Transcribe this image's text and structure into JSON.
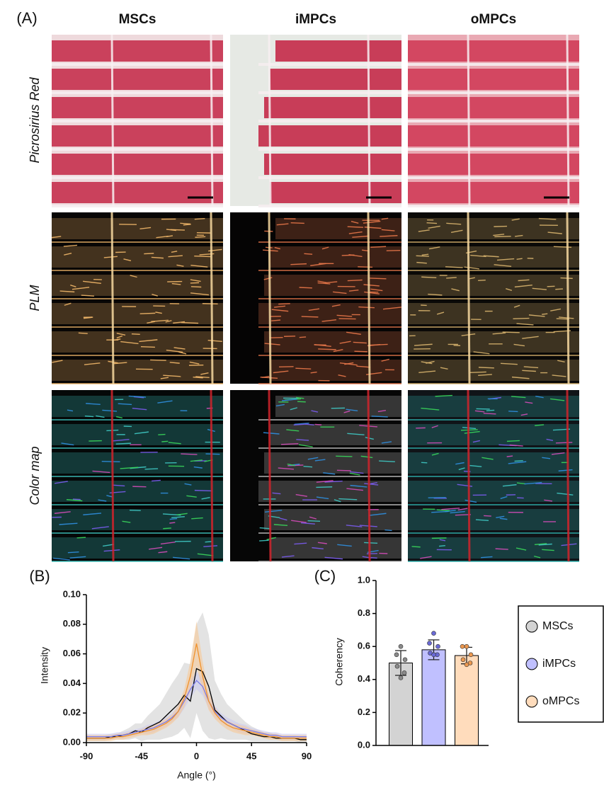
{
  "figure": {
    "panel_labels": [
      "(A)",
      "(B)",
      "(C)"
    ],
    "columns": [
      "MSCs",
      "iMPCs",
      "oMPCs"
    ],
    "rows": [
      "Picrosirius Red",
      "PLM",
      "Color map"
    ]
  },
  "chart_data": [
    {
      "type": "line",
      "xlabel": "Angle (°)",
      "ylabel": "Intensity",
      "x": [
        -90,
        -85,
        -80,
        -75,
        -70,
        -65,
        -60,
        -55,
        -50,
        -45,
        -40,
        -35,
        -30,
        -25,
        -20,
        -15,
        -10,
        -5,
        0,
        5,
        10,
        15,
        20,
        25,
        30,
        35,
        40,
        45,
        50,
        55,
        60,
        65,
        70,
        75,
        80,
        85,
        90
      ],
      "xlim": [
        -90,
        90
      ],
      "xticks": [
        -90,
        -45,
        0,
        45,
        90
      ],
      "ylim": [
        0,
        0.1
      ],
      "yticks": [
        {
          "value": 0,
          "label": "0.00"
        },
        {
          "value": 0.02,
          "label": "0.02"
        },
        {
          "value": 0.04,
          "label": "0.04"
        },
        {
          "value": 0.06,
          "label": "0.06"
        },
        {
          "value": 0.08,
          "label": "0.08"
        },
        {
          "value": 0.1,
          "label": "0.10"
        }
      ],
      "series": [
        {
          "color": "#000000",
          "band_color": "#cccccc",
          "values": [
            0.003,
            0.003,
            0.003,
            0.003,
            0.004,
            0.004,
            0.005,
            0.006,
            0.008,
            0.007,
            0.01,
            0.012,
            0.014,
            0.018,
            0.022,
            0.026,
            0.032,
            0.028,
            0.05,
            0.048,
            0.038,
            0.022,
            0.018,
            0.014,
            0.012,
            0.01,
            0.008,
            0.006,
            0.005,
            0.004,
            0.004,
            0.003,
            0.003,
            0.003,
            0.003,
            0.002,
            0.002
          ],
          "error": [
            0.002,
            0.002,
            0.002,
            0.002,
            0.002,
            0.002,
            0.003,
            0.004,
            0.005,
            0.006,
            0.008,
            0.01,
            0.012,
            0.015,
            0.018,
            0.02,
            0.022,
            0.025,
            0.03,
            0.04,
            0.035,
            0.02,
            0.015,
            0.012,
            0.01,
            0.008,
            0.006,
            0.005,
            0.004,
            0.003,
            0.003,
            0.002,
            0.002,
            0.002,
            0.002,
            0.002,
            0.002
          ]
        },
        {
          "color": "#7b7be8",
          "band_color": "#c9c9f2",
          "values": [
            0.004,
            0.004,
            0.004,
            0.004,
            0.004,
            0.005,
            0.005,
            0.006,
            0.007,
            0.008,
            0.009,
            0.01,
            0.012,
            0.014,
            0.017,
            0.021,
            0.028,
            0.036,
            0.042,
            0.038,
            0.028,
            0.021,
            0.017,
            0.014,
            0.012,
            0.01,
            0.009,
            0.008,
            0.007,
            0.006,
            0.005,
            0.005,
            0.004,
            0.004,
            0.004,
            0.004,
            0.004
          ],
          "error": [
            0.002,
            0.002,
            0.002,
            0.002,
            0.002,
            0.002,
            0.002,
            0.002,
            0.002,
            0.002,
            0.003,
            0.003,
            0.003,
            0.003,
            0.003,
            0.004,
            0.005,
            0.006,
            0.006,
            0.006,
            0.005,
            0.004,
            0.003,
            0.003,
            0.003,
            0.003,
            0.003,
            0.002,
            0.002,
            0.002,
            0.002,
            0.002,
            0.002,
            0.002,
            0.002,
            0.002,
            0.002
          ]
        },
        {
          "color": "#f0922c",
          "band_color": "#f9c690",
          "values": [
            0.003,
            0.003,
            0.003,
            0.003,
            0.003,
            0.004,
            0.004,
            0.005,
            0.006,
            0.007,
            0.008,
            0.009,
            0.011,
            0.013,
            0.016,
            0.021,
            0.03,
            0.045,
            0.067,
            0.045,
            0.028,
            0.02,
            0.015,
            0.012,
            0.01,
            0.009,
            0.008,
            0.007,
            0.006,
            0.005,
            0.004,
            0.004,
            0.003,
            0.003,
            0.003,
            0.003,
            0.003
          ],
          "error": [
            0.002,
            0.002,
            0.002,
            0.002,
            0.002,
            0.002,
            0.002,
            0.002,
            0.002,
            0.002,
            0.003,
            0.003,
            0.003,
            0.003,
            0.003,
            0.004,
            0.006,
            0.01,
            0.015,
            0.01,
            0.006,
            0.004,
            0.003,
            0.003,
            0.003,
            0.003,
            0.003,
            0.002,
            0.002,
            0.002,
            0.002,
            0.002,
            0.002,
            0.002,
            0.002,
            0.002,
            0.002
          ]
        }
      ]
    },
    {
      "type": "bar",
      "ylabel": "Coherency",
      "ylim": [
        0,
        1
      ],
      "yticks": [
        {
          "value": 0,
          "label": "0.0"
        },
        {
          "value": 0.2,
          "label": "0.2"
        },
        {
          "value": 0.4,
          "label": "0.4"
        },
        {
          "value": 0.6,
          "label": "0.6"
        },
        {
          "value": 0.8,
          "label": "0.8"
        },
        {
          "value": 1,
          "label": "1.0"
        }
      ],
      "legend": "right",
      "series": [
        {
          "name": "MSCs",
          "color": "#d3d3d3",
          "point_color": "#8a8a8a",
          "values": [
            0.5
          ],
          "error": [
            0.075
          ],
          "points": [
            0.6,
            0.55,
            0.52,
            0.48,
            0.44,
            0.41
          ]
        },
        {
          "name": "iMPCs",
          "color": "#c0c0ff",
          "point_color": "#6a6ad6",
          "values": [
            0.58
          ],
          "error": [
            0.06
          ],
          "points": [
            0.68,
            0.62,
            0.6,
            0.56,
            0.55,
            0.55
          ]
        },
        {
          "name": "oMPCs",
          "color": "#ffdcbc",
          "point_color": "#eb9850",
          "values": [
            0.545
          ],
          "error": [
            0.05
          ],
          "points": [
            0.6,
            0.6,
            0.55,
            0.52,
            0.5,
            0.49
          ]
        }
      ]
    }
  ]
}
